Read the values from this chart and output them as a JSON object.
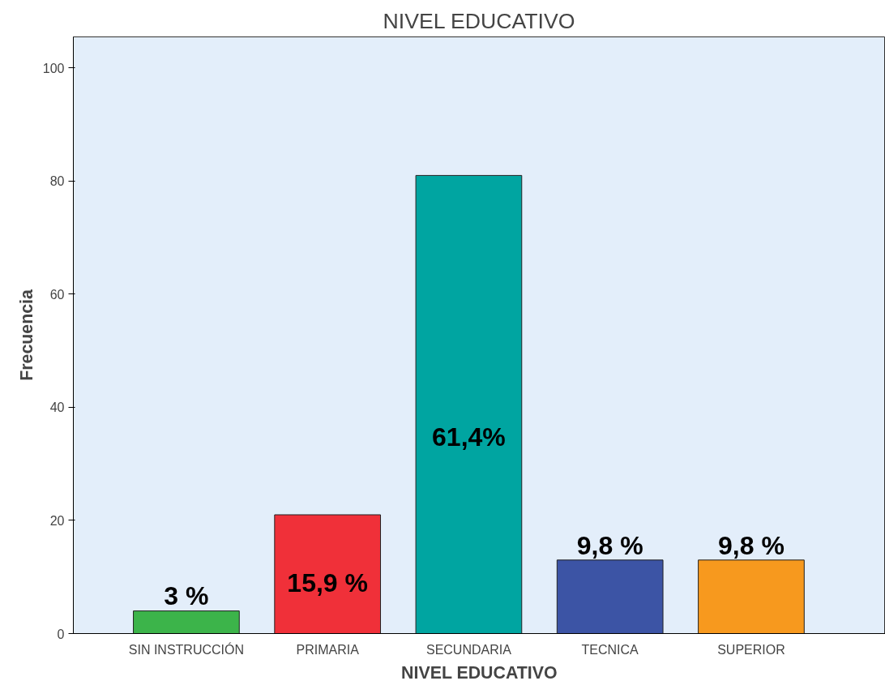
{
  "chart_data": {
    "type": "bar",
    "title": "NIVEL EDUCATIVO",
    "xlabel": "NIVEL EDUCATIVO",
    "ylabel": "Frecuencia",
    "categories": [
      "SIN INSTRUCCIÓN",
      "PRIMARIA",
      "SECUNDARIA",
      "TECNICA",
      "SUPERIOR"
    ],
    "values": [
      4,
      21,
      81,
      13,
      13
    ],
    "colors": [
      "#3cb44a",
      "#f03039",
      "#00a5a1",
      "#3c54a5",
      "#f7991e"
    ],
    "annotations": [
      "3 %",
      "15,9 %",
      "61,4%",
      "9,8 %",
      "9,8 %"
    ],
    "ylim": [
      0,
      105.5
    ],
    "yticks": [
      0,
      20,
      40,
      60,
      80,
      100
    ],
    "grid": false
  }
}
